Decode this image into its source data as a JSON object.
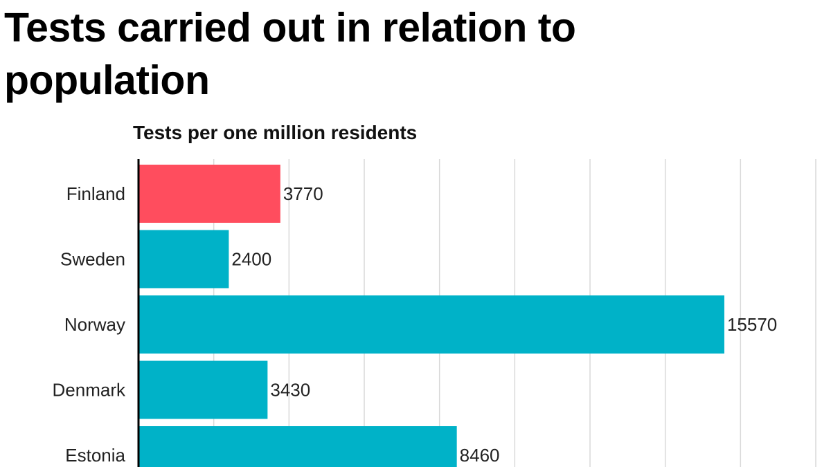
{
  "header": {
    "title": "Tests carried out in relation to population",
    "subtitle": "Tests per one million residents"
  },
  "colors": {
    "highlight": "#ff4d5e",
    "default": "#00b2c8",
    "grid": "#d9d9d9",
    "axis": "#000000"
  },
  "chart_data": {
    "type": "bar",
    "orientation": "horizontal",
    "title": "Tests carried out in relation to population",
    "subtitle": "Tests per one million residents",
    "categories": [
      "Finland",
      "Sweden",
      "Norway",
      "Denmark",
      "Estonia"
    ],
    "values": [
      3770,
      2400,
      15570,
      3430,
      8460
    ],
    "highlight": "Finland",
    "xlim": [
      0,
      18000
    ],
    "grid": true,
    "xlabel": "",
    "ylabel": ""
  }
}
